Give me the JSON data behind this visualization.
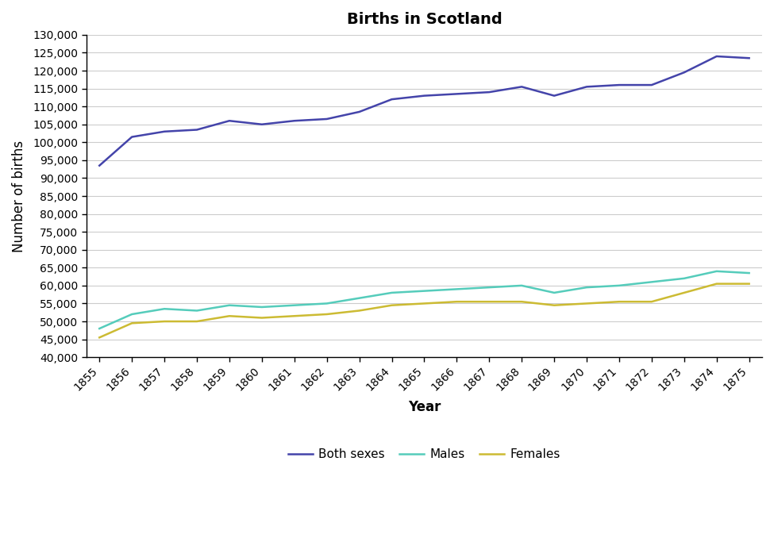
{
  "years": [
    1855,
    1856,
    1857,
    1858,
    1859,
    1860,
    1861,
    1862,
    1863,
    1864,
    1865,
    1866,
    1867,
    1868,
    1869,
    1870,
    1871,
    1872,
    1873,
    1874,
    1875
  ],
  "both_sexes": [
    93500,
    101500,
    103000,
    103500,
    106000,
    105000,
    106000,
    106500,
    108500,
    112000,
    113000,
    113500,
    114000,
    115500,
    113000,
    115500,
    116000,
    116000,
    119500,
    124000,
    123500
  ],
  "males": [
    48000,
    52000,
    53500,
    53000,
    54500,
    54000,
    54500,
    55000,
    56500,
    58000,
    58500,
    59000,
    59500,
    60000,
    58000,
    59500,
    60000,
    61000,
    62000,
    64000,
    63500
  ],
  "females": [
    45500,
    49500,
    50000,
    50000,
    51500,
    51000,
    51500,
    52000,
    53000,
    54500,
    55000,
    55500,
    55500,
    55500,
    54500,
    55000,
    55500,
    55500,
    58000,
    60500,
    60500
  ],
  "both_color": "#4444aa",
  "males_color": "#55ccbb",
  "females_color": "#ccbb33",
  "title": "Births in Scotland",
  "xlabel": "Year",
  "ylabel": "Number of births",
  "ylim": [
    40000,
    130000
  ],
  "ytick_step": 5000,
  "legend_labels": [
    "Both sexes",
    "Males",
    "Females"
  ],
  "title_fontsize": 14,
  "axis_fontsize": 12,
  "tick_fontsize": 10,
  "background_color": "#ffffff",
  "grid_color": "#cccccc"
}
